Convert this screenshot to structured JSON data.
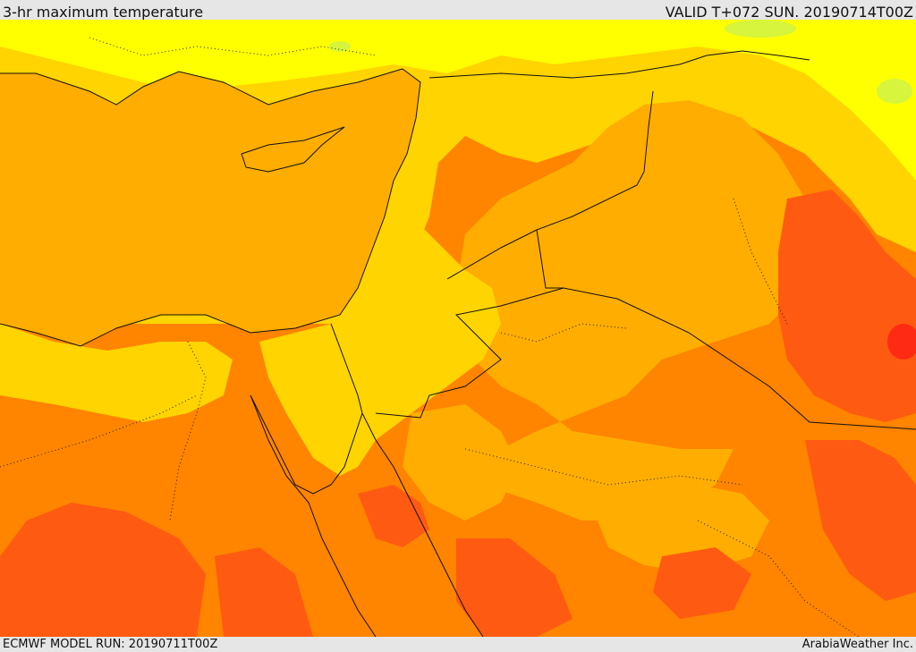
{
  "header": {
    "title": "3-hr maximum temperature",
    "valid": "VALID T+072 SUN. 20190714T00Z"
  },
  "footer": {
    "model_run": "ECMWF MODEL RUN: 20190711T00Z",
    "credit": "ArabiaWeather Inc."
  },
  "colors": {
    "green": "#d6f53c",
    "yellow": "#ffff00",
    "gold": "#ffd400",
    "amber": "#ffad00",
    "orange": "#ff8400",
    "red_orange": "#ff5a12",
    "red": "#ff2a14",
    "border": "#111111",
    "background": "#e6e6e6"
  }
}
